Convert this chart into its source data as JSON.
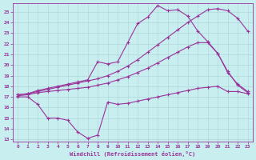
{
  "title": "",
  "xlabel": "Windchill (Refroidissement éolien,°C)",
  "ylabel": "",
  "bg_color": "#c8eef0",
  "grid_color": "#b0d8da",
  "line_color": "#993399",
  "xlim": [
    -0.5,
    23.5
  ],
  "ylim": [
    12.8,
    25.8
  ],
  "yticks": [
    13,
    14,
    15,
    16,
    17,
    18,
    19,
    20,
    21,
    22,
    23,
    24,
    25
  ],
  "xticks": [
    0,
    1,
    2,
    3,
    4,
    5,
    6,
    7,
    8,
    9,
    10,
    11,
    12,
    13,
    14,
    15,
    16,
    17,
    18,
    19,
    20,
    21,
    22,
    23
  ],
  "s1_x": [
    0,
    1,
    2,
    3,
    4,
    5,
    6,
    7,
    8,
    9,
    10,
    11,
    12,
    13,
    14,
    15,
    16,
    17,
    18,
    19,
    20,
    21,
    22,
    23
  ],
  "s1_y": [
    17.0,
    17.0,
    16.3,
    15.0,
    15.0,
    14.8,
    13.7,
    13.1,
    13.4,
    16.5,
    16.3,
    16.4,
    16.6,
    16.8,
    17.0,
    17.2,
    17.4,
    17.6,
    17.8,
    17.9,
    18.0,
    17.5,
    17.5,
    17.3
  ],
  "s2_x": [
    0,
    1,
    2,
    3,
    4,
    5,
    6,
    7,
    8,
    9,
    10,
    11,
    12,
    13,
    14,
    15,
    16,
    17,
    18,
    19,
    20,
    21,
    22,
    23
  ],
  "s2_y": [
    17.1,
    17.2,
    17.4,
    17.5,
    17.6,
    17.7,
    17.8,
    17.9,
    18.1,
    18.3,
    18.6,
    18.9,
    19.3,
    19.7,
    20.2,
    20.7,
    21.2,
    21.7,
    22.1,
    22.1,
    21.1,
    19.3,
    18.2,
    17.5
  ],
  "s3_x": [
    0,
    1,
    2,
    3,
    4,
    5,
    6,
    7,
    8,
    9,
    10,
    11,
    12,
    13,
    14,
    15,
    16,
    17,
    18,
    19,
    20,
    21,
    22,
    23
  ],
  "s3_y": [
    17.2,
    17.3,
    17.5,
    17.7,
    17.9,
    18.1,
    18.3,
    18.5,
    18.7,
    19.0,
    19.4,
    19.9,
    20.5,
    21.2,
    21.9,
    22.6,
    23.3,
    24.0,
    24.6,
    25.2,
    25.3,
    25.1,
    24.4,
    23.2
  ],
  "s4_x": [
    0,
    1,
    2,
    3,
    4,
    5,
    6,
    7,
    8,
    9,
    10,
    11,
    12,
    13,
    14,
    15,
    16,
    17,
    18,
    19,
    20,
    21,
    22,
    23
  ],
  "s4_y": [
    17.2,
    17.3,
    17.6,
    17.8,
    18.0,
    18.2,
    18.4,
    18.6,
    20.3,
    20.1,
    20.3,
    22.1,
    23.9,
    24.5,
    25.6,
    25.1,
    25.2,
    24.6,
    23.2,
    22.2,
    21.1,
    19.4,
    18.1,
    17.4
  ]
}
